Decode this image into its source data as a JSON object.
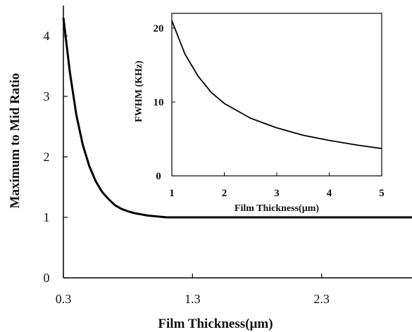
{
  "chart_data": [
    {
      "type": "line",
      "title": "",
      "xlabel": "Film Thickness(µm)",
      "ylabel": "Maximum to Mid Ratio",
      "xlim": [
        0.3,
        3.0
      ],
      "ylim": [
        0,
        4.5
      ],
      "xticks": [
        0.3,
        1.3,
        2.3
      ],
      "xtick_labels": [
        "0.3",
        "1.3",
        "2.3"
      ],
      "yticks": [
        0,
        1,
        2,
        3,
        4
      ],
      "ytick_labels": [
        "0",
        "1",
        "2",
        "3",
        "4"
      ],
      "grid": false,
      "series": [
        {
          "x": [
            0.3,
            0.35,
            0.4,
            0.45,
            0.5,
            0.55,
            0.6,
            0.65,
            0.7,
            0.75,
            0.8,
            0.85,
            0.9,
            0.95,
            1.0,
            1.05,
            1.1,
            1.2,
            1.3,
            1.5,
            2.0,
            2.5,
            3.0
          ],
          "y": [
            4.3,
            3.4,
            2.7,
            2.2,
            1.85,
            1.6,
            1.42,
            1.3,
            1.2,
            1.14,
            1.1,
            1.07,
            1.05,
            1.03,
            1.02,
            1.01,
            1.0,
            1.0,
            1.0,
            1.0,
            1.0,
            1.0,
            1.0
          ],
          "color": "#000000"
        }
      ]
    },
    {
      "type": "line",
      "title": "",
      "xlabel": "Film Thickness(µm)",
      "ylabel": "FWHM (KHz)",
      "xlim": [
        1,
        5
      ],
      "ylim": [
        0,
        22
      ],
      "xticks": [
        1,
        2,
        3,
        4,
        5
      ],
      "xtick_labels": [
        "1",
        "2",
        "3",
        "4",
        "5"
      ],
      "yticks": [
        0,
        10,
        20
      ],
      "ytick_labels": [
        "0",
        "10",
        "20"
      ],
      "grid": false,
      "series": [
        {
          "x": [
            1.0,
            1.25,
            1.5,
            1.75,
            2.0,
            2.5,
            3.0,
            3.5,
            4.0,
            4.5,
            5.0
          ],
          "y": [
            21.0,
            16.5,
            13.5,
            11.3,
            9.8,
            7.8,
            6.5,
            5.5,
            4.8,
            4.2,
            3.7
          ],
          "color": "#000000"
        }
      ]
    }
  ]
}
